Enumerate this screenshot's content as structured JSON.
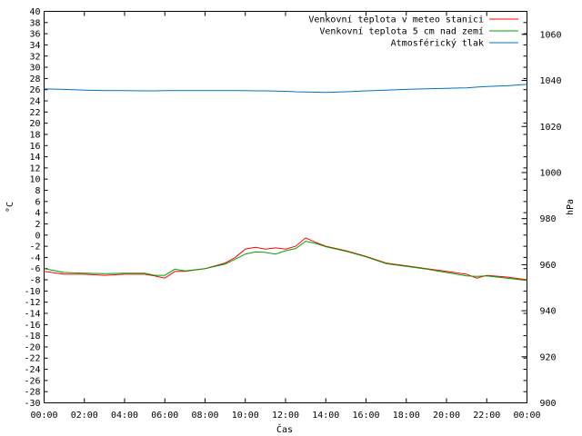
{
  "chart_data": {
    "type": "line",
    "xlabel": "Čas",
    "ylabel_left": "°C",
    "ylabel_right": "hPa",
    "ylim_left": [
      -30,
      40
    ],
    "ylim_right": [
      900,
      1070
    ],
    "grid": false,
    "legend_position": "top-right",
    "x_ticks": [
      "00:00",
      "02:00",
      "04:00",
      "06:00",
      "08:00",
      "10:00",
      "12:00",
      "14:00",
      "16:00",
      "18:00",
      "20:00",
      "22:00",
      "00:00"
    ],
    "y_ticks_left": [
      40,
      38,
      36,
      34,
      32,
      30,
      28,
      26,
      24,
      22,
      20,
      18,
      16,
      14,
      12,
      10,
      8,
      6,
      4,
      2,
      0,
      -2,
      -4,
      -6,
      -8,
      -10,
      -12,
      -14,
      -16,
      -18,
      -20,
      -22,
      -24,
      -26,
      -28,
      -30
    ],
    "y_ticks_right": [
      1060,
      1040,
      1020,
      1000,
      980,
      960,
      940,
      920,
      900
    ],
    "x_hours": [
      0,
      1,
      2,
      3,
      4,
      5,
      5.5,
      6,
      6.5,
      7,
      8,
      9,
      9.5,
      10,
      10.5,
      11,
      11.5,
      12,
      12.5,
      13,
      13.5,
      14,
      15,
      16,
      17,
      18,
      19,
      20,
      21,
      21.5,
      22,
      23,
      24
    ],
    "series": [
      {
        "name": "Venkovní teplota v meteo stanici",
        "axis": "left",
        "color": "#ff0000",
        "values": [
          -6.5,
          -7,
          -7,
          -7.2,
          -7,
          -7,
          -7.3,
          -7.7,
          -6.5,
          -6.5,
          -6,
          -5,
          -4,
          -2.5,
          -2.2,
          -2.5,
          -2.3,
          -2.5,
          -2,
          -0.5,
          -1.3,
          -2,
          -2.8,
          -3.8,
          -5,
          -5.5,
          -6,
          -6.5,
          -7,
          -7.7,
          -7.2,
          -7.5,
          -8
        ]
      },
      {
        "name": "Venkovní teplota 5 cm nad zemí",
        "axis": "left",
        "color": "#00a000",
        "values": [
          -6,
          -6.7,
          -6.8,
          -6.9,
          -6.8,
          -6.8,
          -7.2,
          -7.2,
          -6.1,
          -6.4,
          -6,
          -5.2,
          -4.3,
          -3.4,
          -3,
          -3.1,
          -3.4,
          -2.8,
          -2.4,
          -1.1,
          -1.5,
          -2.1,
          -2.9,
          -3.9,
          -5.1,
          -5.6,
          -6.1,
          -6.7,
          -7.3,
          -7.4,
          -7.3,
          -7.7,
          -8.1
        ]
      },
      {
        "name": "Atmosférický tlak",
        "axis": "right",
        "color": "#0070c0",
        "values": [
          1036.3,
          1036.1,
          1035.8,
          1035.6,
          1035.6,
          1035.5,
          1035.5,
          1035.6,
          1035.6,
          1035.6,
          1035.6,
          1035.6,
          1035.6,
          1035.6,
          1035.5,
          1035.5,
          1035.4,
          1035.3,
          1035.1,
          1035,
          1034.9,
          1034.8,
          1035.1,
          1035.5,
          1035.8,
          1036.1,
          1036.4,
          1036.6,
          1036.8,
          1037.1,
          1037.4,
          1037.7,
          1038.3
        ]
      }
    ]
  }
}
